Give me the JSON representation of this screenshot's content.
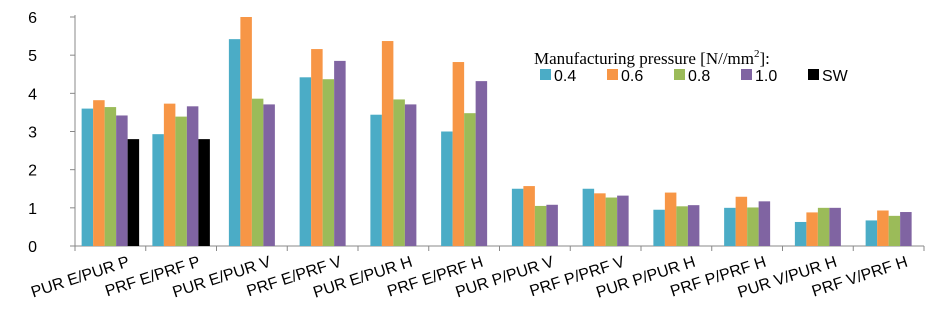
{
  "chart_data": {
    "type": "bar",
    "categories": [
      "PUR E/PUR P",
      "PRF E/PRF P",
      "PUR E/PUR V",
      "PRF E/PRF V",
      "PUR E/PUR H",
      "PRF E/PRF H",
      "PUR P/PUR V",
      "PRF P/PRF V",
      "PUR P/PUR H",
      "PRF P/PRF H",
      "PUR V/PUR H",
      "PRF V/PRF H"
    ],
    "series": [
      {
        "name": "0.4",
        "color": "#4bacc6",
        "values": [
          3.6,
          2.93,
          5.42,
          4.42,
          3.44,
          3.0,
          1.5,
          1.5,
          0.95,
          1.0,
          0.63,
          0.67
        ]
      },
      {
        "name": "0.6",
        "color": "#f79646",
        "values": [
          3.82,
          3.73,
          6.02,
          5.16,
          5.37,
          4.82,
          1.57,
          1.38,
          1.4,
          1.29,
          0.88,
          0.93
        ]
      },
      {
        "name": "0.8",
        "color": "#9bbb59",
        "values": [
          3.64,
          3.39,
          3.86,
          4.37,
          3.84,
          3.48,
          1.05,
          1.27,
          1.04,
          1.01,
          1.0,
          0.79
        ]
      },
      {
        "name": "1.0",
        "color": "#8064a2",
        "values": [
          3.42,
          3.66,
          3.71,
          4.85,
          3.71,
          4.32,
          1.08,
          1.32,
          1.07,
          1.17,
          1.0,
          0.89
        ]
      },
      {
        "name": "SW",
        "color": "#000000",
        "values": [
          2.8,
          2.8,
          null,
          null,
          null,
          null,
          null,
          null,
          null,
          null,
          null,
          null
        ]
      }
    ],
    "ylim": [
      0,
      6
    ],
    "yticks": [
      0,
      1,
      2,
      3,
      4,
      5,
      6
    ],
    "grid": false,
    "legend": {
      "title_prefix": "Manufacturing pressure [N//mm",
      "title_sup": "2",
      "title_suffix": "]:",
      "placement": "top-right"
    }
  }
}
